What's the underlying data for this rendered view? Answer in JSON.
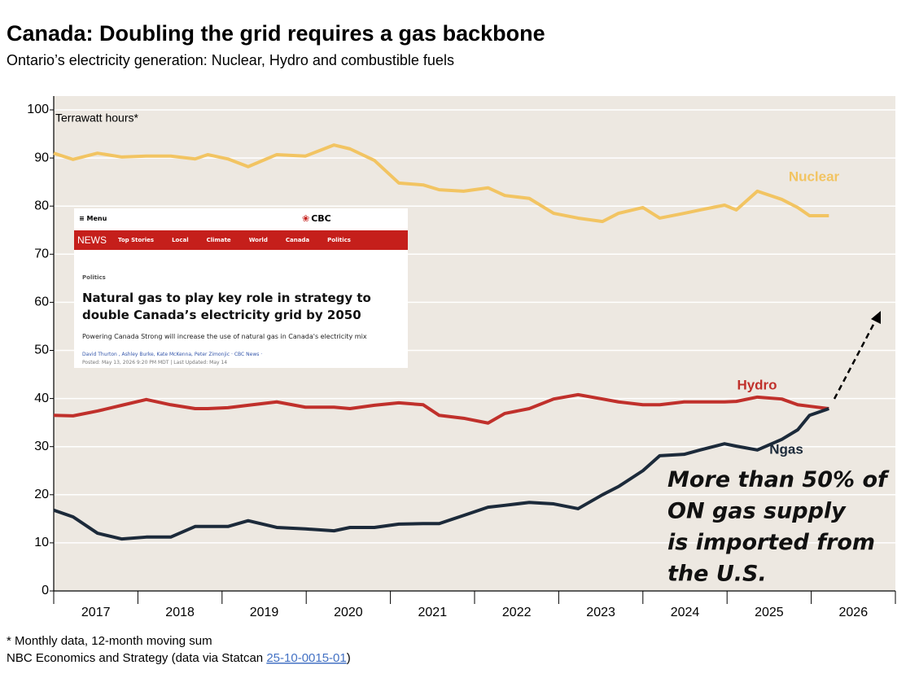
{
  "chart_data": {
    "type": "line",
    "title": "Canada: Doubling the grid requires a gas backbone",
    "subtitle": "Ontario’s electricity generation: Nuclear, Hydro and combustible fuels",
    "y_label": "Terrawatt hours*",
    "annotation": "More than 50% of ON gas supply is imported from the U.S.",
    "footnote": "* Monthly data, 12-month moving sum",
    "source": "NBC Economics and Strategy (data via Statcan",
    "source_link": "25-10-0015-01",
    "source_end": ")",
    "x": [
      2017.0,
      2017.23,
      2017.52,
      2017.81,
      2018.1,
      2018.39,
      2018.68,
      2018.83,
      2019.07,
      2019.31,
      2019.65,
      2019.99,
      2020.33,
      2020.52,
      2020.81,
      2021.1,
      2021.39,
      2021.58,
      2021.87,
      2022.16,
      2022.36,
      2022.65,
      2022.94,
      2023.23,
      2023.52,
      2023.71,
      2024.0,
      2024.2,
      2024.49,
      2024.68,
      2024.97,
      2025.11,
      2025.36,
      2025.65,
      2025.84,
      2025.98,
      2026.21
    ],
    "series": [
      {
        "name": "Nuclear",
        "color": "#f2c462",
        "values": [
          91,
          89.7,
          91,
          90.2,
          90.4,
          90.4,
          89.8,
          90.7,
          89.8,
          88.2,
          90.7,
          90.4,
          92.7,
          91.9,
          89.5,
          84.8,
          84.4,
          83.4,
          83.1,
          83.8,
          82.2,
          81.6,
          78.5,
          77.5,
          76.8,
          78.5,
          79.7,
          77.5,
          78.5,
          79.2,
          80.2,
          79.2,
          83.1,
          81.4,
          79.7,
          78,
          78
        ]
      },
      {
        "name": "Hydro",
        "color": "#c0302b",
        "values": [
          36.5,
          36.4,
          37.4,
          38.6,
          39.8,
          38.7,
          37.9,
          37.9,
          38.1,
          38.6,
          39.3,
          38.2,
          38.2,
          37.9,
          38.6,
          39.1,
          38.7,
          36.5,
          35.9,
          34.9,
          36.9,
          37.9,
          39.9,
          40.8,
          39.9,
          39.3,
          38.7,
          38.7,
          39.3,
          39.3,
          39.3,
          39.4,
          40.3,
          39.9,
          38.7,
          38.4,
          37.9
        ]
      },
      {
        "name": "Ngas",
        "color": "#1c2a3a",
        "values": [
          16.8,
          15.4,
          12.0,
          10.8,
          11.2,
          11.2,
          13.4,
          13.4,
          13.4,
          14.6,
          13.2,
          12.9,
          12.5,
          13.2,
          13.2,
          13.9,
          14.0,
          14.0,
          15.7,
          17.4,
          17.8,
          18.4,
          18.1,
          17.1,
          20.0,
          21.7,
          25.0,
          28.1,
          28.4,
          29.3,
          30.6,
          30.1,
          29.3,
          31.5,
          33.5,
          36.5,
          37.9
        ]
      }
    ],
    "xlim": [
      2017,
      2027
    ],
    "xticks": [
      2017,
      2018,
      2019,
      2020,
      2021,
      2022,
      2023,
      2024,
      2025,
      2026
    ],
    "ylim": [
      0,
      100
    ],
    "yticks": [
      0,
      10,
      20,
      30,
      40,
      50,
      60,
      70,
      80,
      90,
      100
    ],
    "grid": true
  },
  "inset": {
    "menu": "Menu",
    "logo": "CBC",
    "news": "NEWS",
    "nav": [
      "Top Stories",
      "Local",
      "Climate",
      "World",
      "Canada",
      "Politics"
    ],
    "section": "Politics",
    "headline": "Natural gas to play key role in strategy to double Canada’s electricity grid by 2050",
    "dek": "Powering Canada Strong will increase the use of natural gas in Canada's electricity mix",
    "byline": "David Thurton , Ashley Burke, Kate McKenna, Peter Zimonjic · CBC News ·",
    "posted": "Posted: May 13, 2026 9:20 PM MDT | Last Updated: May 14"
  }
}
